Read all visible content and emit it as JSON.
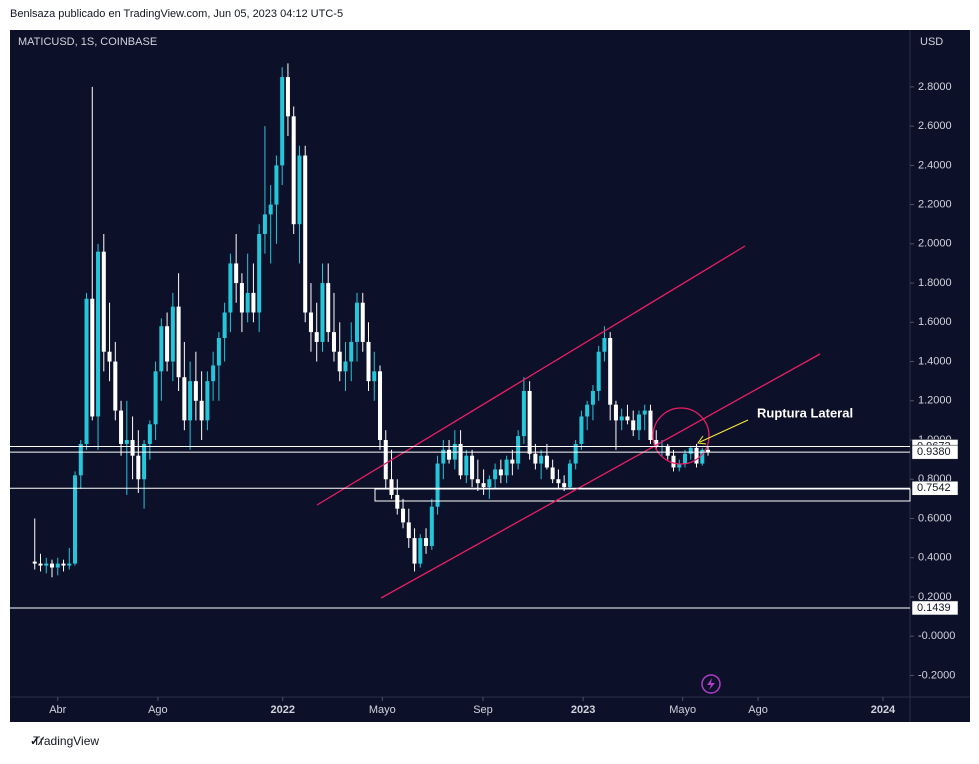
{
  "header": {
    "text": "Benlsaza publicado en TradingView.com, Jun 05, 2023 04:12 UTC-5"
  },
  "footer": {
    "brand": "TradingView"
  },
  "chart_data": {
    "type": "candlestick",
    "symbol": "MATICUSD, 1S, COINBASE",
    "currency": "USD",
    "annotation": "Ruptura Lateral",
    "up_color": "#26c6da",
    "down_color": "#ffffff",
    "xlim": [
      4.7,
      161.1
    ],
    "xticks": [
      {
        "value": 13,
        "label": "Abr"
      },
      {
        "value": 30.4,
        "label": "Ago"
      },
      {
        "value": 52.1,
        "label": "2022"
      },
      {
        "value": 69.4,
        "label": "Mayo"
      },
      {
        "value": 86.9,
        "label": "Sep"
      },
      {
        "value": 104.3,
        "label": "2023"
      },
      {
        "value": 121.6,
        "label": "Mayo"
      },
      {
        "value": 134.7,
        "label": "Ago"
      },
      {
        "value": 156.4,
        "label": "2024"
      }
    ],
    "ylim": [
      -0.31,
      3.09
    ],
    "yticks": [
      {
        "value": -0.2,
        "label": "-0.2000"
      },
      {
        "value": 0,
        "label": "-0.0000"
      },
      {
        "value": 0.2,
        "label": "0.2000"
      },
      {
        "value": 0.4,
        "label": "0.4000"
      },
      {
        "value": 0.6,
        "label": "0.6000"
      },
      {
        "value": 0.8,
        "label": "0.8000"
      },
      {
        "value": 1.0,
        "label": "1.0000"
      },
      {
        "value": 1.2,
        "label": "1.2000"
      },
      {
        "value": 1.4,
        "label": "1.4000"
      },
      {
        "value": 1.6,
        "label": "1.6000"
      },
      {
        "value": 1.8,
        "label": "1.8000"
      },
      {
        "value": 2.0,
        "label": "2.0000"
      },
      {
        "value": 2.2,
        "label": "2.2000"
      },
      {
        "value": 2.4,
        "label": "2.4000"
      },
      {
        "value": 2.6,
        "label": "2.6000"
      },
      {
        "value": 2.8,
        "label": "2.8000"
      }
    ],
    "price_lines": [
      {
        "value": 0.9672,
        "label": "0.9672"
      },
      {
        "value": 0.938,
        "label": "0.9380"
      },
      {
        "value": 0.7542,
        "label": "0.7542"
      },
      {
        "value": 0.1439,
        "label": "0.1439"
      }
    ],
    "x": [
      9,
      10,
      11,
      12,
      13,
      14,
      15,
      16,
      17,
      18,
      19,
      20,
      21,
      22,
      23,
      24,
      25,
      26,
      27,
      28,
      29,
      30,
      31,
      32,
      33,
      34,
      35,
      36,
      37,
      38,
      39,
      40,
      41,
      42,
      43,
      44,
      45,
      46,
      47,
      48,
      49,
      50,
      51,
      52,
      53,
      54,
      55,
      56,
      57,
      58,
      59,
      60,
      61,
      62,
      63,
      64,
      65,
      66,
      67,
      68,
      69,
      70,
      71,
      72,
      73,
      74,
      75,
      76,
      77,
      78,
      79,
      80,
      81,
      82,
      83,
      84,
      85,
      86,
      87,
      88,
      89,
      90,
      91,
      92,
      93,
      94,
      95,
      96,
      97,
      98,
      99,
      100,
      101,
      102,
      103,
      104,
      105,
      106,
      107,
      108,
      109,
      110,
      111,
      112,
      113,
      114,
      115,
      116,
      117,
      118,
      119,
      120,
      121,
      122,
      123,
      124,
      125,
      126
    ],
    "open": [
      0.38,
      0.37,
      0.36,
      0.37,
      0.35,
      0.37,
      0.36,
      0.37,
      0.82,
      0.98,
      1.72,
      1.12,
      1.96,
      1.45,
      1.4,
      1.15,
      0.98,
      1.0,
      0.92,
      0.8,
      0.98,
      1.08,
      1.35,
      1.58,
      1.4,
      1.68,
      1.32,
      1.1,
      1.3,
      1.2,
      1.1,
      1.3,
      1.38,
      1.52,
      1.65,
      1.9,
      1.8,
      1.65,
      1.75,
      1.65,
      2.05,
      2.15,
      2.2,
      2.4,
      2.85,
      2.65,
      2.1,
      2.45,
      1.65,
      1.55,
      1.5,
      1.8,
      1.55,
      1.45,
      1.35,
      1.4,
      1.5,
      1.7,
      1.5,
      1.3,
      1.35,
      1.0,
      0.8,
      0.72,
      0.65,
      0.58,
      0.5,
      0.37,
      0.5,
      0.46,
      0.66,
      0.88,
      0.95,
      0.9,
      0.98,
      0.82,
      0.92,
      0.8,
      0.78,
      0.76,
      0.8,
      0.85,
      0.82,
      0.9,
      0.88,
      1.02,
      1.25,
      0.93,
      0.88,
      0.92,
      0.86,
      0.8,
      0.78,
      0.76,
      0.88,
      0.98,
      1.12,
      1.18,
      1.25,
      1.45,
      1.52,
      1.18,
      1.1,
      1.12,
      1.1,
      1.05,
      1.13,
      1.15,
      1.0,
      0.97,
      0.97,
      0.92,
      0.86,
      0.88,
      0.93,
      0.96,
      0.88,
      0.95
    ],
    "high": [
      0.6,
      0.42,
      0.4,
      0.39,
      0.4,
      0.39,
      0.45,
      0.84,
      1.0,
      1.75,
      2.8,
      2.0,
      2.05,
      1.7,
      1.5,
      1.2,
      1.2,
      1.12,
      1.05,
      1.0,
      1.1,
      1.4,
      1.62,
      1.65,
      1.75,
      1.85,
      1.5,
      1.4,
      1.45,
      1.35,
      1.35,
      1.45,
      1.55,
      1.7,
      1.95,
      2.05,
      1.85,
      1.95,
      1.9,
      2.1,
      2.6,
      2.3,
      2.45,
      2.9,
      2.92,
      2.7,
      2.5,
      2.5,
      1.8,
      1.7,
      1.9,
      1.9,
      1.75,
      1.6,
      1.5,
      1.6,
      1.75,
      1.75,
      1.6,
      1.45,
      1.38,
      1.05,
      0.95,
      0.8,
      0.7,
      0.65,
      0.55,
      0.52,
      0.55,
      0.7,
      0.92,
      1.0,
      1.0,
      1.05,
      1.05,
      0.95,
      0.95,
      0.9,
      0.85,
      0.82,
      0.88,
      0.9,
      0.92,
      0.95,
      1.05,
      1.32,
      1.3,
      0.98,
      0.95,
      0.98,
      0.9,
      0.85,
      0.82,
      0.9,
      1.0,
      1.15,
      1.2,
      1.28,
      1.48,
      1.58,
      1.55,
      1.2,
      1.16,
      1.18,
      1.15,
      1.15,
      1.18,
      1.18,
      1.05,
      1.0,
      0.98,
      0.95,
      0.9,
      0.95,
      0.97,
      0.98,
      0.96,
      0.97
    ],
    "low": [
      0.34,
      0.33,
      0.32,
      0.3,
      0.31,
      0.33,
      0.34,
      0.36,
      0.75,
      0.95,
      1.1,
      0.95,
      1.35,
      1.3,
      1.1,
      0.92,
      0.72,
      0.8,
      0.73,
      0.65,
      0.9,
      1.0,
      1.2,
      1.35,
      1.3,
      1.25,
      1.05,
      0.95,
      1.1,
      1.0,
      1.05,
      1.2,
      1.2,
      1.4,
      1.55,
      1.7,
      1.55,
      1.6,
      1.6,
      1.55,
      1.95,
      1.9,
      2.0,
      2.3,
      2.55,
      2.05,
      1.9,
      1.6,
      1.45,
      1.4,
      1.45,
      1.5,
      1.4,
      1.3,
      1.25,
      1.3,
      1.4,
      1.45,
      1.25,
      1.2,
      0.95,
      0.75,
      0.7,
      0.62,
      0.55,
      0.45,
      0.33,
      0.35,
      0.42,
      0.44,
      0.62,
      0.8,
      0.88,
      0.85,
      0.8,
      0.78,
      0.76,
      0.74,
      0.72,
      0.7,
      0.75,
      0.78,
      0.78,
      0.82,
      0.85,
      0.98,
      0.9,
      0.85,
      0.8,
      0.85,
      0.78,
      0.75,
      0.74,
      0.75,
      0.85,
      0.95,
      1.05,
      1.1,
      1.2,
      1.4,
      1.1,
      0.95,
      1.05,
      1.08,
      1.02,
      1.0,
      1.05,
      0.98,
      0.95,
      0.92,
      0.9,
      0.84,
      0.84,
      0.86,
      0.9,
      0.86,
      0.87,
      0.92
    ],
    "close": [
      0.37,
      0.36,
      0.37,
      0.35,
      0.37,
      0.36,
      0.37,
      0.82,
      0.98,
      1.72,
      1.12,
      1.96,
      1.45,
      1.4,
      1.15,
      0.98,
      1.0,
      0.92,
      0.8,
      0.98,
      1.08,
      1.35,
      1.58,
      1.4,
      1.68,
      1.32,
      1.1,
      1.3,
      1.2,
      1.1,
      1.3,
      1.38,
      1.52,
      1.65,
      1.9,
      1.8,
      1.65,
      1.75,
      1.65,
      2.05,
      2.15,
      2.2,
      2.4,
      2.85,
      2.65,
      2.1,
      2.45,
      1.65,
      1.55,
      1.5,
      1.8,
      1.55,
      1.45,
      1.35,
      1.4,
      1.5,
      1.7,
      1.5,
      1.3,
      1.35,
      1.0,
      0.8,
      0.72,
      0.65,
      0.58,
      0.5,
      0.37,
      0.5,
      0.46,
      0.66,
      0.88,
      0.95,
      0.9,
      0.98,
      0.82,
      0.92,
      0.8,
      0.78,
      0.76,
      0.8,
      0.85,
      0.82,
      0.9,
      0.88,
      1.02,
      1.25,
      0.93,
      0.88,
      0.92,
      0.86,
      0.8,
      0.78,
      0.76,
      0.88,
      0.98,
      1.12,
      1.18,
      1.25,
      1.45,
      1.52,
      1.18,
      1.1,
      1.12,
      1.1,
      1.05,
      1.13,
      1.15,
      1.0,
      0.97,
      0.97,
      0.92,
      0.86,
      0.88,
      0.93,
      0.96,
      0.88,
      0.95,
      0.938
    ]
  }
}
